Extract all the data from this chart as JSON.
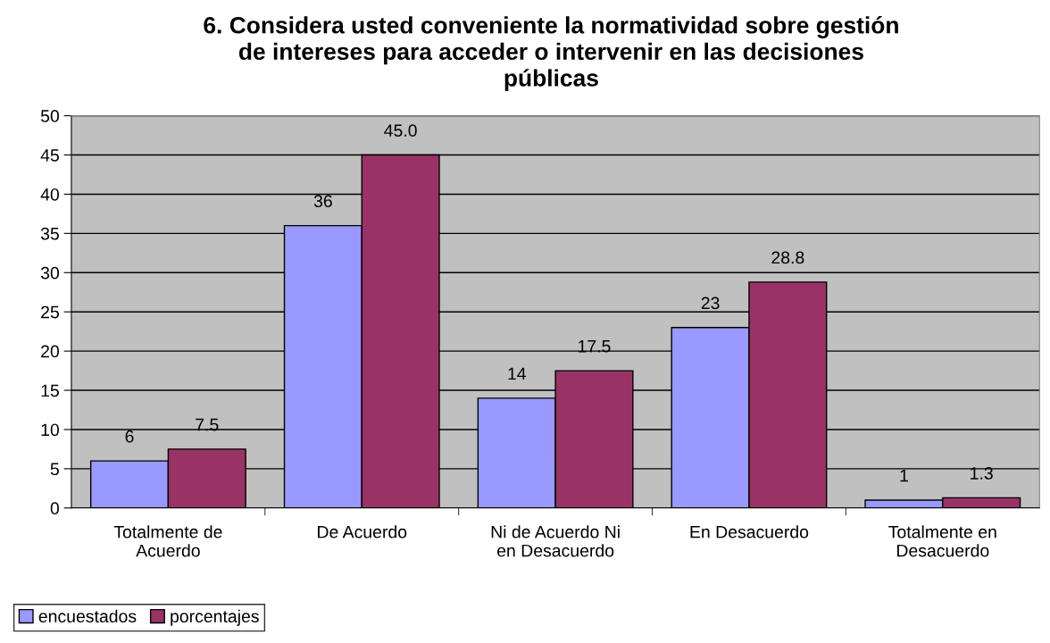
{
  "chart_data": {
    "type": "bar",
    "title": "6. Considera usted conveniente la normatividad sobre gestión\nde intereses para acceder o intervenir en las decisiones\npúblicas",
    "categories": [
      "Totalmente de\nAcuerdo",
      "De Acuerdo",
      "Ni de Acuerdo Ni\nen Desacuerdo",
      "En Desacuerdo",
      "Totalmente en\nDesacuerdo"
    ],
    "series": [
      {
        "name": "encuestados",
        "color": "#9999ff",
        "values": [
          6,
          36,
          14,
          23,
          1
        ],
        "value_labels": [
          "6",
          "36",
          "14",
          "23",
          "1"
        ]
      },
      {
        "name": "porcentajes",
        "color": "#993366",
        "values": [
          7.5,
          45.0,
          17.5,
          28.8,
          1.3
        ],
        "value_labels": [
          "7.5",
          "45.0",
          "17.5",
          "28.8",
          "1.3"
        ]
      }
    ],
    "ylim": [
      0,
      50
    ],
    "yticks": [
      0,
      5,
      10,
      15,
      20,
      25,
      30,
      35,
      40,
      45,
      50
    ],
    "grid": "y",
    "legend": "bottom left"
  }
}
